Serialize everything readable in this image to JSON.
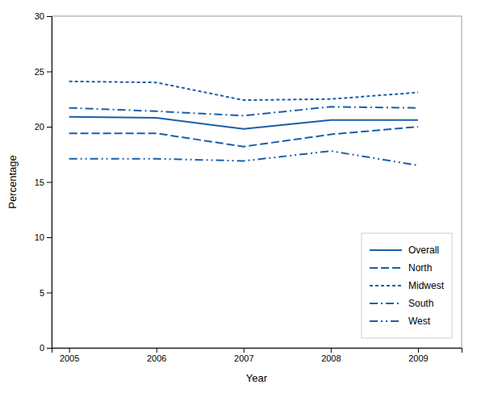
{
  "chart_data": {
    "type": "line",
    "x": [
      2005,
      2006,
      2007,
      2008,
      2009
    ],
    "xlabel": "Year",
    "ylabel": "Percentage",
    "series": [
      {
        "name": "Overall",
        "color": "#1a5fa8",
        "line_style": "solid",
        "values": [
          20.9,
          20.8,
          19.8,
          20.6,
          20.6
        ]
      },
      {
        "name": "North",
        "color": "#1a5fa8",
        "line_style": "dashed",
        "values": [
          19.4,
          19.4,
          18.2,
          19.3,
          20.0
        ]
      },
      {
        "name": "Midwest",
        "color": "#1a5fa8",
        "line_style": "dotted",
        "values": [
          24.1,
          24.0,
          22.4,
          22.5,
          23.1
        ]
      },
      {
        "name": "South",
        "color": "#1a5fa8",
        "line_style": "dashdot",
        "values": [
          21.7,
          21.4,
          21.0,
          21.8,
          21.7
        ]
      },
      {
        "name": "West",
        "color": "#1a5fa8",
        "line_style": "dashdotdot",
        "values": [
          17.1,
          17.1,
          16.9,
          17.8,
          16.5
        ]
      }
    ],
    "xlim": [
      2004.8,
      2009.5
    ],
    "xticks": [
      2005,
      2006,
      2007,
      2008,
      2009
    ],
    "ylim": [
      0,
      30
    ],
    "yticks": [
      0,
      5,
      10,
      15,
      20,
      25,
      30
    ],
    "grid": false,
    "legend": "lower right"
  }
}
